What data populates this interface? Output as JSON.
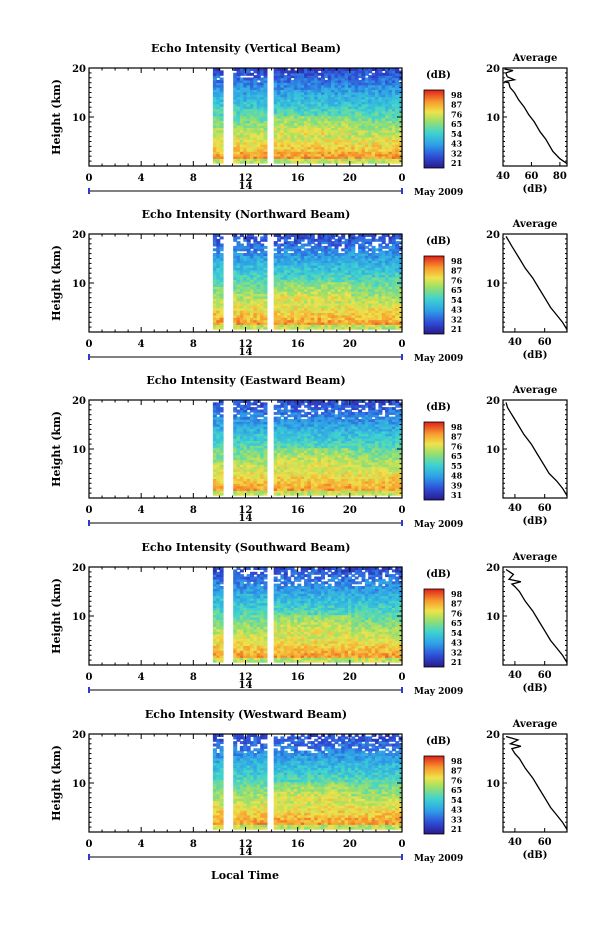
{
  "figure": {
    "x_axis_title": "Local Time",
    "date_label": "May 2009",
    "day_label": "14"
  },
  "chart_data": [
    {
      "type": "heatmap",
      "title": "Echo Intensity (Vertical Beam)",
      "ylabel": "Height (km)",
      "xlim": [
        0,
        24
      ],
      "ylim": [
        0,
        20
      ],
      "xticks": [
        "0",
        "4",
        "8",
        "12",
        "16",
        "20",
        "0"
      ],
      "yticks": [
        "10",
        "20"
      ],
      "colorbar": {
        "unit": "(dB)",
        "ticks": [
          "98",
          "87",
          "76",
          "65",
          "54",
          "43",
          "32",
          "21"
        ]
      },
      "data_start_hour": 9.5,
      "gaps_hours": [
        [
          10.4,
          10.8
        ],
        [
          13.8,
          14.1
        ]
      ],
      "average_profile": {
        "title": "Average",
        "xlabel": "(dB)",
        "xticks": [
          "40",
          "60",
          "80"
        ],
        "xlim": [
          40,
          85
        ],
        "ylim": [
          0,
          20
        ],
        "points": [
          [
            85,
            0.5
          ],
          [
            80,
            1.5
          ],
          [
            75,
            3
          ],
          [
            72,
            4.5
          ],
          [
            70,
            5.5
          ],
          [
            66,
            7
          ],
          [
            62,
            9
          ],
          [
            58,
            10.5
          ],
          [
            55,
            12
          ],
          [
            51,
            13.5
          ],
          [
            48,
            15
          ],
          [
            45,
            16
          ],
          [
            44,
            17
          ],
          [
            41,
            17.2
          ],
          [
            48,
            17.6
          ],
          [
            43,
            18.2
          ],
          [
            42,
            19
          ],
          [
            47,
            19.5
          ],
          [
            41,
            19.8
          ]
        ]
      }
    },
    {
      "type": "heatmap",
      "title": "Echo Intensity (Northward Beam)",
      "ylabel": "Height (km)",
      "xlim": [
        0,
        24
      ],
      "ylim": [
        0,
        20
      ],
      "xticks": [
        "0",
        "4",
        "8",
        "12",
        "16",
        "20",
        "0"
      ],
      "yticks": [
        "10",
        "20"
      ],
      "colorbar": {
        "unit": "(dB)",
        "ticks": [
          "98",
          "87",
          "76",
          "65",
          "54",
          "43",
          "32",
          "21"
        ]
      },
      "data_start_hour": 9.5,
      "gaps_hours": [
        [
          10.4,
          10.8
        ],
        [
          13.8,
          14.1
        ]
      ],
      "average_profile": {
        "title": "Average",
        "xlabel": "(dB)",
        "xticks": [
          "40",
          "60"
        ],
        "xlim": [
          32,
          75
        ],
        "ylim": [
          0,
          20
        ],
        "points": [
          [
            75,
            0.5
          ],
          [
            72,
            2
          ],
          [
            68,
            3.5
          ],
          [
            64,
            5
          ],
          [
            60,
            7
          ],
          [
            56,
            9
          ],
          [
            52,
            11
          ],
          [
            47,
            13
          ],
          [
            43,
            15
          ],
          [
            40,
            16.5
          ],
          [
            38,
            17.5
          ],
          [
            36,
            18.5
          ],
          [
            34,
            19.5
          ]
        ]
      }
    },
    {
      "type": "heatmap",
      "title": "Echo Intensity (Eastward Beam)",
      "ylabel": "Height (km)",
      "xlim": [
        0,
        24
      ],
      "ylim": [
        0,
        20
      ],
      "xticks": [
        "0",
        "4",
        "8",
        "12",
        "16",
        "20",
        "0"
      ],
      "yticks": [
        "10",
        "20"
      ],
      "colorbar": {
        "unit": "(dB)",
        "ticks": [
          "98",
          "87",
          "76",
          "65",
          "55",
          "48",
          "39",
          "31"
        ]
      },
      "data_start_hour": 9.5,
      "gaps_hours": [
        [
          10.4,
          10.8
        ],
        [
          13.8,
          14.1
        ]
      ],
      "average_profile": {
        "title": "Average",
        "xlabel": "(dB)",
        "xticks": [
          "40",
          "60"
        ],
        "xlim": [
          32,
          75
        ],
        "ylim": [
          0,
          20
        ],
        "points": [
          [
            75,
            0.5
          ],
          [
            72,
            2
          ],
          [
            68,
            3.5
          ],
          [
            63,
            5
          ],
          [
            59,
            7
          ],
          [
            55,
            9
          ],
          [
            51,
            11
          ],
          [
            46,
            13
          ],
          [
            42,
            15
          ],
          [
            39,
            16.5
          ],
          [
            37,
            17.5
          ],
          [
            35,
            18.5
          ],
          [
            34,
            19.5
          ]
        ]
      }
    },
    {
      "type": "heatmap",
      "title": "Echo Intensity (Southward Beam)",
      "ylabel": "Height (km)",
      "xlim": [
        0,
        24
      ],
      "ylim": [
        0,
        20
      ],
      "xticks": [
        "0",
        "4",
        "8",
        "12",
        "16",
        "20",
        "0"
      ],
      "yticks": [
        "10",
        "20"
      ],
      "colorbar": {
        "unit": "(dB)",
        "ticks": [
          "98",
          "87",
          "76",
          "65",
          "54",
          "43",
          "32",
          "21"
        ]
      },
      "data_start_hour": 9.5,
      "gaps_hours": [
        [
          10.4,
          10.8
        ],
        [
          13.8,
          14.1
        ]
      ],
      "average_profile": {
        "title": "Average",
        "xlabel": "(dB)",
        "xticks": [
          "40",
          "60"
        ],
        "xlim": [
          32,
          75
        ],
        "ylim": [
          0,
          20
        ],
        "points": [
          [
            75,
            0.5
          ],
          [
            72,
            2
          ],
          [
            68,
            3.5
          ],
          [
            64,
            5
          ],
          [
            60,
            7
          ],
          [
            56,
            9
          ],
          [
            52,
            11
          ],
          [
            47,
            13
          ],
          [
            43,
            15
          ],
          [
            40,
            16
          ],
          [
            38,
            16.5
          ],
          [
            44,
            17
          ],
          [
            36,
            17.5
          ],
          [
            39,
            18.5
          ],
          [
            34,
            19.5
          ]
        ]
      }
    },
    {
      "type": "heatmap",
      "title": "Echo Intensity (Westward Beam)",
      "ylabel": "Height (km)",
      "xlim": [
        0,
        24
      ],
      "ylim": [
        0,
        20
      ],
      "xticks": [
        "0",
        "4",
        "8",
        "12",
        "16",
        "20",
        "0"
      ],
      "yticks": [
        "10",
        "20"
      ],
      "colorbar": {
        "unit": "(dB)",
        "ticks": [
          "98",
          "87",
          "76",
          "65",
          "54",
          "43",
          "33",
          "21"
        ]
      },
      "data_start_hour": 9.5,
      "gaps_hours": [
        [
          10.4,
          10.8
        ],
        [
          13.8,
          14.1
        ]
      ],
      "average_profile": {
        "title": "Average",
        "xlabel": "(dB)",
        "xticks": [
          "40",
          "60"
        ],
        "xlim": [
          32,
          75
        ],
        "ylim": [
          0,
          20
        ],
        "points": [
          [
            75,
            0.5
          ],
          [
            72,
            2
          ],
          [
            68,
            3.5
          ],
          [
            64,
            5
          ],
          [
            60,
            7
          ],
          [
            56,
            9
          ],
          [
            52,
            11
          ],
          [
            47,
            13
          ],
          [
            43,
            15
          ],
          [
            40,
            16
          ],
          [
            38,
            17
          ],
          [
            44,
            17.5
          ],
          [
            37,
            18
          ],
          [
            42,
            18.8
          ],
          [
            34,
            19.5
          ]
        ]
      }
    }
  ]
}
